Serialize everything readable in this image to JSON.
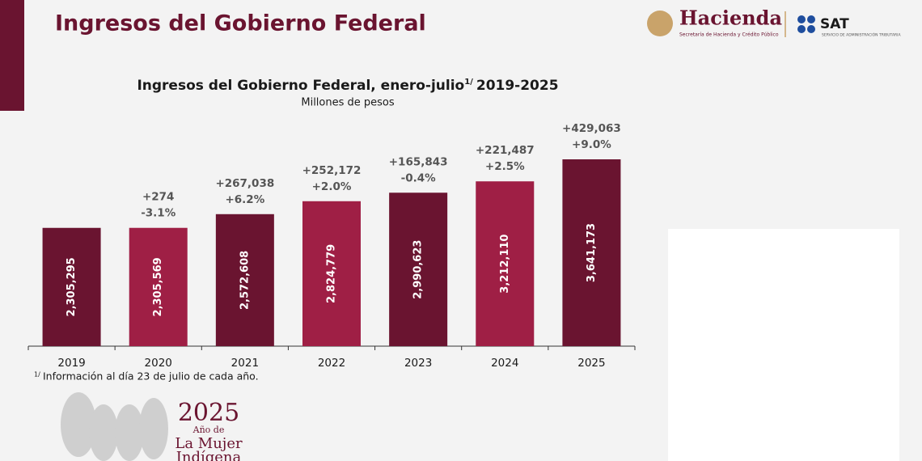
{
  "header": {
    "title": "Ingresos del Gobierno Federal",
    "logo_name": "Hacienda",
    "logo_subtitle": "Secretaría de Hacienda y Crédito Público",
    "sat": "SAT",
    "sat_subtitle": "SERVICIO DE ADMINISTRACIÓN TRIBUTARIA"
  },
  "chart_data": {
    "type": "bar",
    "title": "Ingresos del Gobierno Federal, enero-julio",
    "title_note": "1/",
    "title_suffix": "2019-2025",
    "subtitle": "Millones de pesos",
    "categories": [
      "2019",
      "2020",
      "2021",
      "2022",
      "2023",
      "2024",
      "2025"
    ],
    "values": [
      2305295,
      2305569,
      2572608,
      2824779,
      2990623,
      3212110,
      3641173
    ],
    "value_labels": [
      "2,305,295",
      "2,305,569",
      "2,572,608",
      "2,824,779",
      "2,990,623",
      "3,212,110",
      "3,641,173"
    ],
    "changes": [
      null,
      "+274",
      "+267,038",
      "+252,172",
      "+165,843",
      "+221,487",
      "+429,063"
    ],
    "change_percents": [
      null,
      "-3.1%",
      "+6.2%",
      "+2.0%",
      "-0.4%",
      "+2.5%",
      "+9.0%"
    ],
    "colors": [
      "#6a1430",
      "#9f1f45",
      "#6a1430",
      "#9f1f45",
      "#6a1430",
      "#9f1f45",
      "#6a1430"
    ]
  },
  "footnote": {
    "marker": "1/",
    "text": "Información al día 23 de julio de cada año."
  },
  "badge": {
    "year": "2025",
    "line1": "Año de",
    "line2": "La Mujer",
    "line3": "Indígena"
  }
}
